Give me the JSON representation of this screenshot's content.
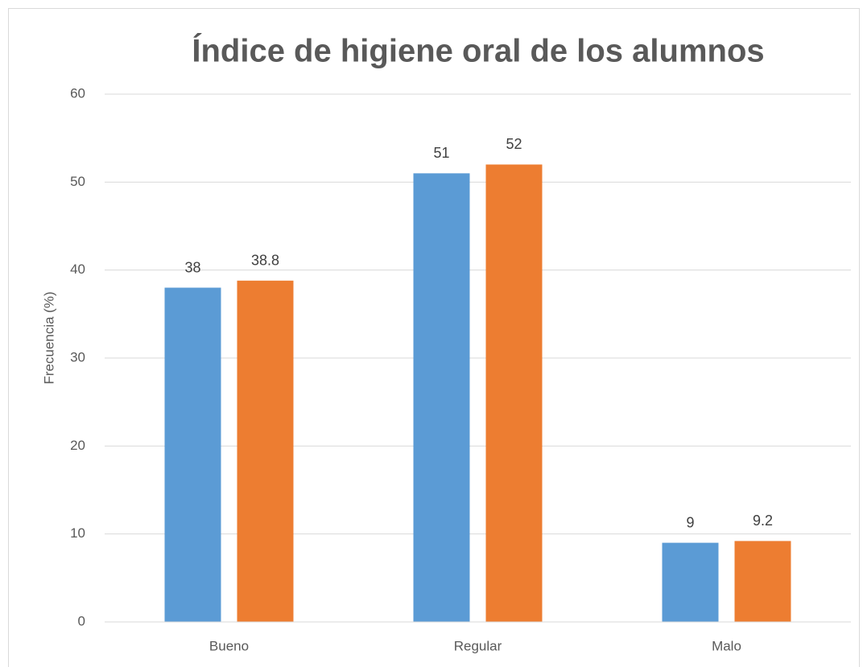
{
  "chart_data": {
    "type": "bar",
    "title": "Índice de higiene oral de los alumnos",
    "y_label": "Frecuencia (%)",
    "categories": [
      "Bueno",
      "Regular",
      "Malo"
    ],
    "series": [
      {
        "color": "#5b9bd5",
        "values": [
          38,
          51,
          9
        ]
      },
      {
        "color": "#ed7d31",
        "values": [
          38.8,
          52,
          9.2
        ]
      }
    ],
    "ylim": [
      0,
      60
    ],
    "yticks": [
      0,
      10,
      20,
      30,
      40,
      50,
      60
    ],
    "grid": true
  }
}
